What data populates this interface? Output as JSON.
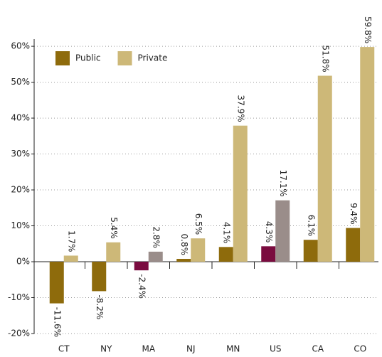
{
  "chart_data": {
    "type": "bar",
    "categories": [
      "CT",
      "NY",
      "MA",
      "NJ",
      "MN",
      "US",
      "CA",
      "CO"
    ],
    "series": [
      {
        "name": "Public",
        "color": "#8e6b0c",
        "colors": [
          "#8e6b0c",
          "#8e6b0c",
          "#7a0b3f",
          "#8e6b0c",
          "#8e6b0c",
          "#7a0b3f",
          "#8e6b0c",
          "#8e6b0c"
        ],
        "values": [
          -11.6,
          -8.2,
          -2.4,
          0.8,
          4.1,
          4.3,
          6.1,
          9.4
        ],
        "value_labels": [
          "-11.6%",
          "-8.2%",
          "-2.4%",
          "0.8%",
          "4.1%",
          "4.3%",
          "6.1%",
          "9.4%"
        ]
      },
      {
        "name": "Private",
        "color": "#cdb878",
        "colors": [
          "#cdb878",
          "#cdb878",
          "#9a8d8a",
          "#cdb878",
          "#cdb878",
          "#9a8d8a",
          "#cdb878",
          "#cdb878"
        ],
        "values": [
          1.7,
          5.4,
          2.8,
          6.5,
          37.9,
          17.1,
          51.8,
          59.8
        ],
        "value_labels": [
          "1.7%",
          "5.4%",
          "2.8%",
          "6.5%",
          "37.9%",
          "17.1%",
          "51.8%",
          "59.8%"
        ]
      }
    ],
    "ylim": [
      -20,
      62
    ],
    "yticks": [
      {
        "value": -20,
        "label": "-20%"
      },
      {
        "value": -10,
        "label": "-10%"
      },
      {
        "value": 0,
        "label": "0%"
      },
      {
        "value": 10,
        "label": "10%"
      },
      {
        "value": 20,
        "label": "20%"
      },
      {
        "value": 30,
        "label": "30%"
      },
      {
        "value": 40,
        "label": "40%"
      },
      {
        "value": 50,
        "label": "50%"
      },
      {
        "value": 60,
        "label": "60%"
      }
    ],
    "grid": true,
    "legend": "top-left"
  }
}
